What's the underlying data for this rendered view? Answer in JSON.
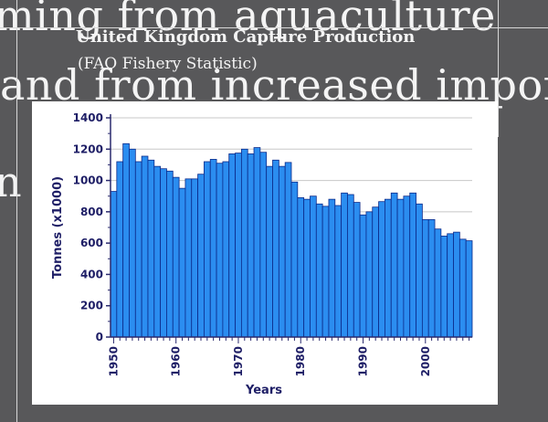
{
  "slide": {
    "background_text": [
      "ming from aquaculture",
      "and from increased impor",
      "n"
    ],
    "colors": {
      "background": "#58585a",
      "text": "#f4f4f4"
    }
  },
  "chart_data": {
    "type": "bar",
    "title": "United Kingdom Capture Production",
    "subtitle": "(FAO Fishery Statistic)",
    "xlabel": "Years",
    "ylabel": "Tonnes (x1000)",
    "ylim": [
      0,
      1400
    ],
    "yticks": [
      0,
      200,
      400,
      600,
      800,
      1000,
      1200,
      1400
    ],
    "xtick_labels": [
      "1950",
      "1960",
      "1970",
      "1980",
      "1990",
      "2000"
    ],
    "grid": true,
    "bar_color": "#2b8df0",
    "categories": [
      1950,
      1951,
      1952,
      1953,
      1954,
      1955,
      1956,
      1957,
      1958,
      1959,
      1960,
      1961,
      1962,
      1963,
      1964,
      1965,
      1966,
      1967,
      1968,
      1969,
      1970,
      1971,
      1972,
      1973,
      1974,
      1975,
      1976,
      1977,
      1978,
      1979,
      1980,
      1981,
      1982,
      1983,
      1984,
      1985,
      1986,
      1987,
      1988,
      1989,
      1990,
      1991,
      1992,
      1993,
      1994,
      1995,
      1996,
      1997,
      1998,
      1999,
      2000,
      2001,
      2002,
      2003,
      2004,
      2005,
      2006,
      2007
    ],
    "values": [
      930,
      1120,
      1235,
      1200,
      1120,
      1155,
      1130,
      1090,
      1075,
      1060,
      1020,
      950,
      1010,
      1010,
      1040,
      1120,
      1135,
      1110,
      1120,
      1170,
      1175,
      1200,
      1170,
      1210,
      1180,
      1090,
      1130,
      1090,
      1115,
      990,
      890,
      880,
      900,
      850,
      835,
      880,
      840,
      920,
      910,
      860,
      780,
      800,
      830,
      865,
      880,
      920,
      880,
      900,
      920,
      850,
      750,
      750,
      690,
      645,
      660,
      670,
      625,
      615
    ]
  }
}
